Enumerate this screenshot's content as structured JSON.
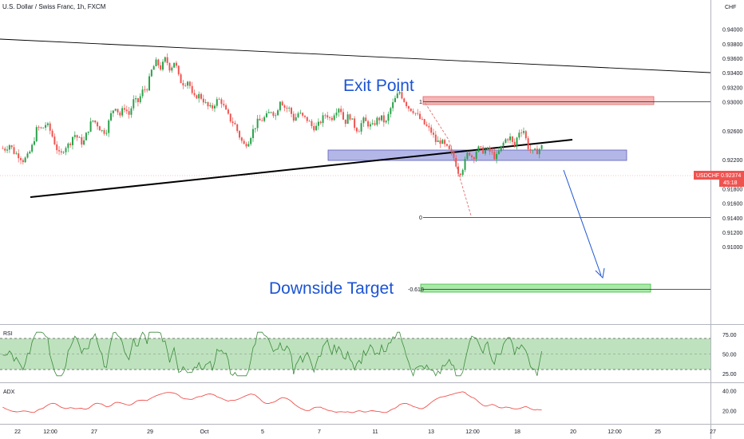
{
  "header": {
    "title": "U.S. Dollar / Swiss Franc, 1h, FXCM"
  },
  "colors": {
    "up": "#26a69a",
    "up_body": "#2aa14a",
    "down": "#ef5350",
    "trendline": "#000000",
    "annotation": "#1c54d4",
    "resistance_zone": "#f0a0a0",
    "support_zone": "#8890d8",
    "target_zone": "#90e090",
    "rsi_line": "#3c8a3c",
    "rsi_band": "#a8d8a8",
    "adx_line": "#ef5350",
    "price_badge": "#ef5350"
  },
  "chart_data": [
    {
      "type": "candlestick",
      "symbol": "USDCHF",
      "quote_currency": "CHF",
      "interval": "1h",
      "ylim": [
        0.9,
        0.9425
      ],
      "y_ticks": [
        "0.94000",
        "0.93800",
        "0.93600",
        "0.93400",
        "0.93200",
        "0.93000",
        "0.92600",
        "0.92200",
        "0.92000",
        "0.91800",
        "0.91600",
        "0.91400",
        "0.91200",
        "0.91000"
      ],
      "x_ticks": [
        "22",
        "12:00",
        "27",
        "29",
        "Oct",
        "5",
        "7",
        "11",
        "13",
        "12:00",
        "18",
        "20",
        "12:00",
        "25",
        "27"
      ],
      "last_price": {
        "symbol": "USDCHF",
        "value": "0.92374",
        "countdown": "45:18"
      },
      "path_points": [
        0.9236,
        0.9235,
        0.9241,
        0.923,
        0.9226,
        0.9219,
        0.9225,
        0.924,
        0.9265,
        0.9262,
        0.927,
        0.9258,
        0.924,
        0.9224,
        0.9238,
        0.9241,
        0.9256,
        0.9249,
        0.9242,
        0.926,
        0.9275,
        0.927,
        0.926,
        0.9259,
        0.9281,
        0.9295,
        0.9281,
        0.9293,
        0.9282,
        0.9301,
        0.93,
        0.9315,
        0.932,
        0.9344,
        0.9355,
        0.9346,
        0.936,
        0.9345,
        0.9357,
        0.933,
        0.9325,
        0.933,
        0.9303,
        0.931,
        0.9305,
        0.9294,
        0.929,
        0.9301,
        0.9303,
        0.9288,
        0.9276,
        0.927,
        0.9254,
        0.924,
        0.9245,
        0.926,
        0.9272,
        0.9275,
        0.928,
        0.9288,
        0.9281,
        0.9304,
        0.9292,
        0.929,
        0.9275,
        0.9285,
        0.9278,
        0.9275,
        0.9265,
        0.9265,
        0.9275,
        0.9284,
        0.9275,
        0.9288,
        0.9294,
        0.927,
        0.9283,
        0.9268,
        0.926,
        0.9275,
        0.927,
        0.9265,
        0.9275,
        0.9278,
        0.927,
        0.929,
        0.9303,
        0.9314,
        0.9302,
        0.9292,
        0.9288,
        0.928,
        0.9272,
        0.9265,
        0.9258,
        0.9244,
        0.9246,
        0.9238,
        0.9231,
        0.9221,
        0.92,
        0.9212,
        0.9232,
        0.9222,
        0.9236,
        0.9232,
        0.9234,
        0.923,
        0.9222,
        0.9235,
        0.9247,
        0.9252,
        0.9237,
        0.9259,
        0.9262,
        0.9238,
        0.923,
        0.9232,
        0.9238
      ],
      "annotations": [
        {
          "text": "Exit Point"
        },
        {
          "text": "Downside Target"
        }
      ],
      "fib_levels": [
        {
          "label": "1",
          "value": 0.9315
        },
        {
          "label": "0",
          "value": 0.9195
        },
        {
          "label": "-0.618",
          "value": 0.9121
        }
      ],
      "zones": [
        {
          "name": "resistance",
          "from": 0.9313,
          "to": 0.9318
        },
        {
          "name": "support",
          "from": 0.9257,
          "to": 0.9264
        },
        {
          "name": "target",
          "from": 0.9119,
          "to": 0.9122
        }
      ]
    },
    {
      "type": "line",
      "label": "RSI",
      "y_ticks": [
        "75.00",
        "50.00",
        "25.00"
      ],
      "ylim": [
        20,
        80
      ],
      "band": [
        30,
        70
      ]
    },
    {
      "type": "line",
      "label": "ADX",
      "y_ticks": [
        "40.00",
        "20.00"
      ],
      "ylim": [
        10,
        45
      ]
    }
  ]
}
